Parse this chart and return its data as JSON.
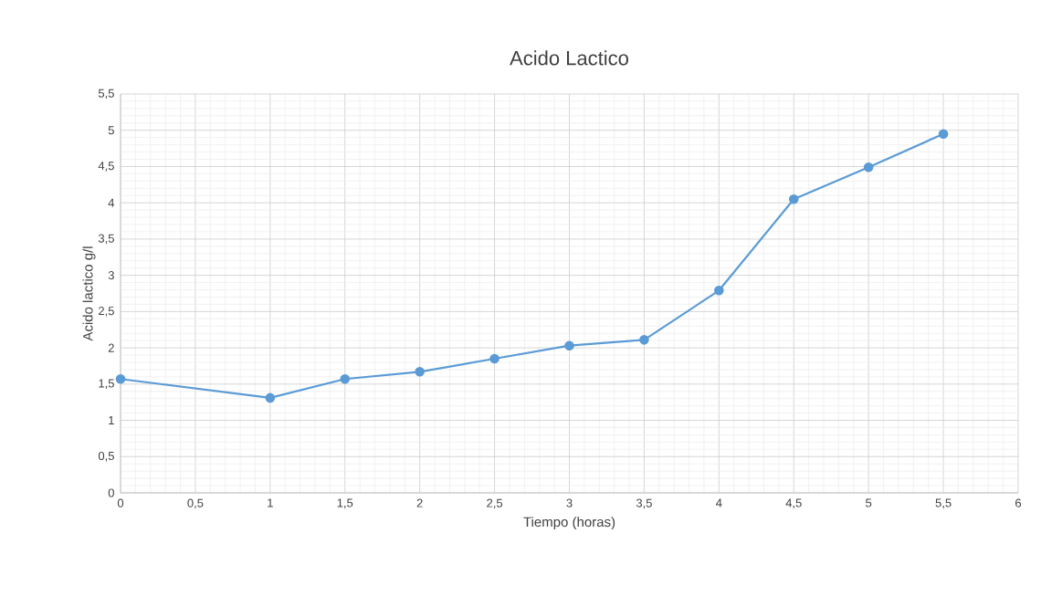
{
  "chart_data": {
    "type": "line",
    "title": "Acido Lactico",
    "xlabel": "Tiempo (horas)",
    "ylabel": "Acido lactico g/l",
    "x": [
      0,
      1,
      1.5,
      2,
      2.5,
      3,
      3.5,
      4,
      4.5,
      5,
      5.5
    ],
    "series": [
      {
        "color": "#5b9bd5",
        "values": [
          1.57,
          1.31,
          1.57,
          1.67,
          1.85,
          2.03,
          2.11,
          2.79,
          4.05,
          4.49,
          4.95
        ]
      }
    ],
    "xlim": [
      0,
      6
    ],
    "ylim": [
      0,
      5.5
    ],
    "xticks": [
      0,
      {
        "value": 0.5,
        "label": "0,5"
      },
      1,
      {
        "value": 1.5,
        "label": "1,5"
      },
      2,
      {
        "value": 2.5,
        "label": "2,5"
      },
      3,
      {
        "value": 3.5,
        "label": "3,5"
      },
      4,
      {
        "value": 4.5,
        "label": "4,5"
      },
      5,
      {
        "value": 5.5,
        "label": "5,5"
      },
      6
    ],
    "yticks": [
      0,
      {
        "value": 0.5,
        "label": "0,5"
      },
      1,
      {
        "value": 1.5,
        "label": "1,5"
      },
      2,
      {
        "value": 2.5,
        "label": "2,5"
      },
      3,
      {
        "value": 3.5,
        "label": "3,5"
      },
      4,
      {
        "value": 4.5,
        "label": "4,5"
      },
      5,
      {
        "value": 5.5,
        "label": "5,5"
      }
    ],
    "grid": true,
    "marker": "circle",
    "line_style": "solid"
  }
}
